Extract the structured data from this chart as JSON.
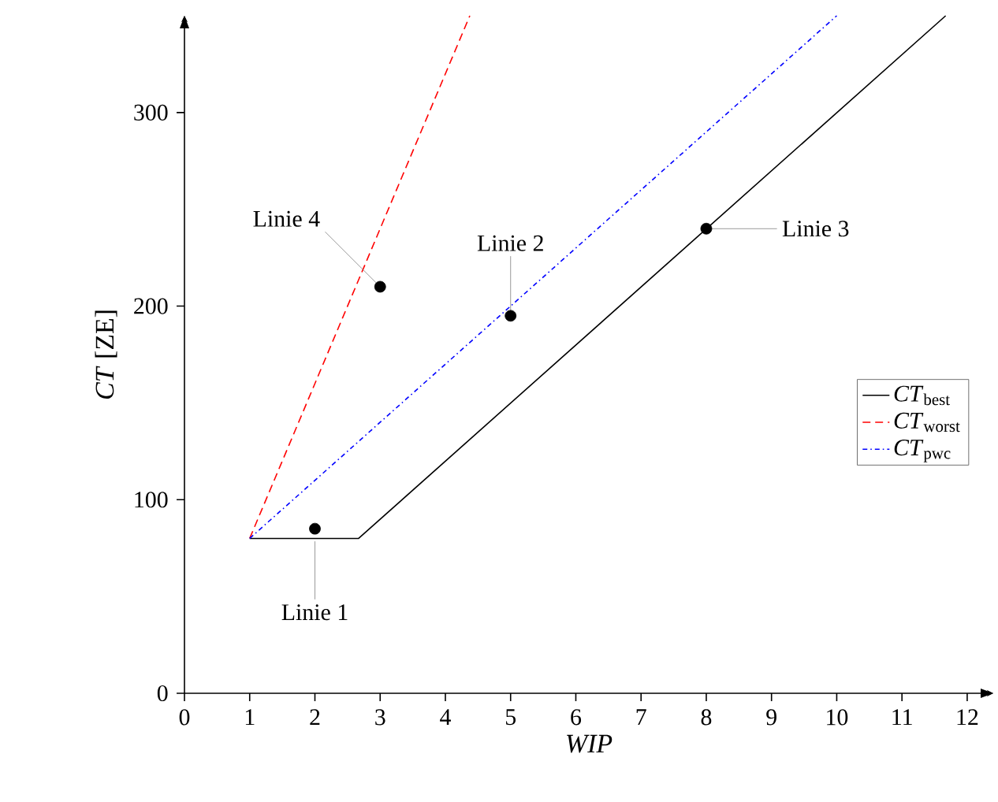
{
  "chart_data": {
    "type": "line",
    "xlabel": "*WIP*",
    "ylabel": "*CT* [ZE]",
    "xlim": [
      0,
      12.4
    ],
    "ylim": [
      0,
      350
    ],
    "xticks": [
      0,
      1,
      2,
      3,
      4,
      5,
      6,
      7,
      8,
      9,
      10,
      11,
      12
    ],
    "yticks": [
      0,
      100,
      200,
      300
    ],
    "grid": false,
    "legend": "right",
    "series": [
      {
        "name": "*CT*$_{best}$",
        "color": "#000000",
        "line_style": "solid",
        "marker": "none",
        "x": [
          1,
          2.67,
          11.67
        ],
        "values": [
          80,
          80,
          350
        ]
      },
      {
        "name": "*CT*$_{worst}$",
        "color": "#ff0000",
        "line_style": "dashed",
        "marker": "none",
        "x": [
          1,
          4.375
        ],
        "values": [
          80,
          350
        ]
      },
      {
        "name": "*CT*$_{pwc}$",
        "color": "#0000ff",
        "line_style": "dashdot",
        "marker": "none",
        "x": [
          1,
          10
        ],
        "values": [
          80,
          350
        ]
      },
      {
        "type": "scatter",
        "color": "#000000",
        "x": [
          2,
          3,
          5,
          8
        ],
        "values": [
          85,
          210,
          195,
          240
        ]
      }
    ],
    "annotations": [
      {
        "text": "Linie 1",
        "x": 2,
        "y": 85
      },
      {
        "text": "Linie 4",
        "x": 3,
        "y": 210
      },
      {
        "text": "Linie 2",
        "x": 5,
        "y": 195
      },
      {
        "text": "Linie 3",
        "x": 8,
        "y": 240
      }
    ]
  }
}
